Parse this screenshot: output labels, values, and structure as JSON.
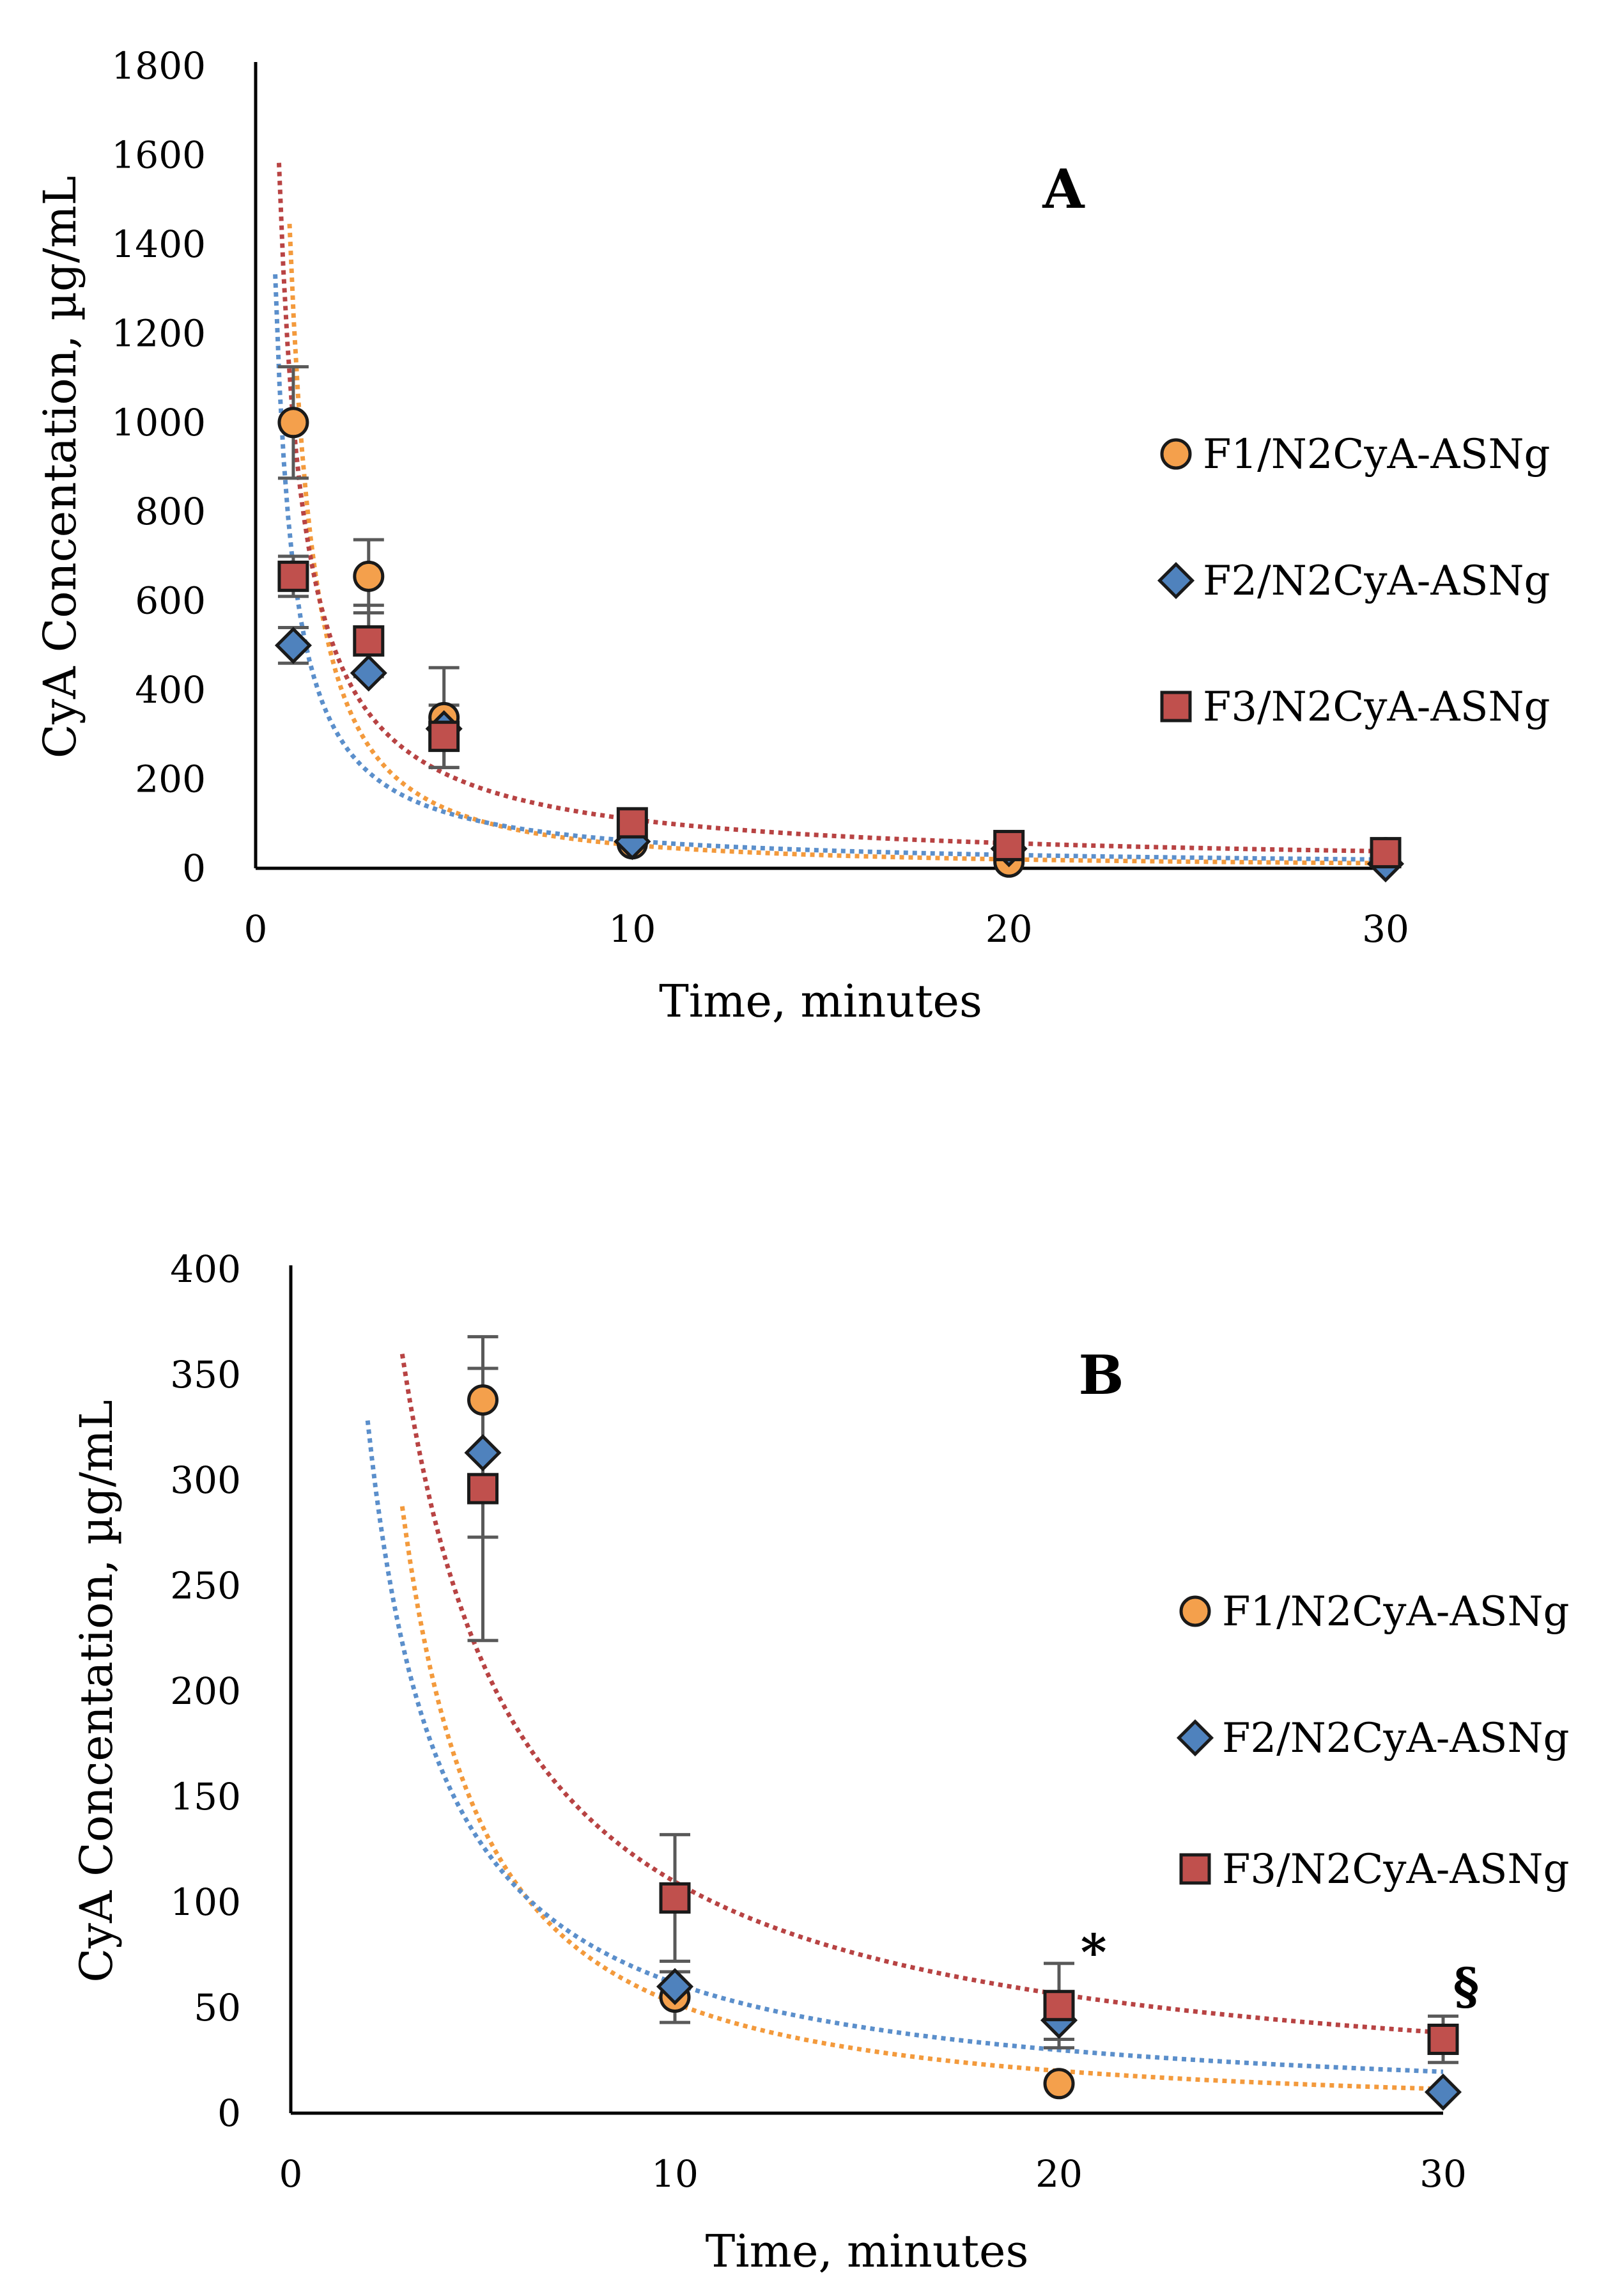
{
  "colors": {
    "F1": "#f4a04c",
    "F2": "#4f82bd",
    "F3": "#c0504d",
    "fit_F1": "#f39a3c",
    "fit_F2": "#5b8fcb",
    "fit_F3": "#b84343",
    "marker_edge": "#1a1a1a",
    "errorbar": "#595959",
    "axis": "#000000"
  },
  "legend_items": [
    "F1/N2CyA-ASNg",
    "F2/N2CyA-ASNg",
    "F3/N2CyA-ASNg"
  ],
  "chart_data": [
    {
      "panel": "A",
      "type": "scatter",
      "xlabel": "Time, minutes",
      "ylabel": "CyA Concentation, µg/mL",
      "xlim": [
        0,
        30
      ],
      "ylim": [
        0,
        1800
      ],
      "x_ticks": [
        0,
        10,
        20,
        30
      ],
      "y_ticks": [
        0,
        200,
        400,
        600,
        800,
        1000,
        1200,
        1400,
        1600,
        1800
      ],
      "grid": false,
      "legend_position": "right",
      "series": [
        {
          "name": "F1/N2CyA-ASNg",
          "marker": "circle",
          "color_key": "F1",
          "points": [
            {
              "x": 1,
              "y": 1000,
              "err": 125
            },
            {
              "x": 3,
              "y": 655,
              "err": 82
            },
            {
              "x": 5,
              "y": 338,
              "err": 112
            },
            {
              "x": 10,
              "y": 55,
              "err": 0
            },
            {
              "x": 20,
              "y": 14,
              "err": 0
            },
            {
              "x": 30,
              "y": 35,
              "err": 0
            }
          ],
          "fit": {
            "a": 1250,
            "b": 1.38,
            "xmin": 0.9
          }
        },
        {
          "name": "F2/N2CyA-ASNg",
          "marker": "diamond",
          "color_key": "F2",
          "points": [
            {
              "x": 1,
              "y": 500,
              "err": 40
            },
            {
              "x": 3,
              "y": 438,
              "err": 0
            },
            {
              "x": 5,
              "y": 313,
              "err": 0
            },
            {
              "x": 10,
              "y": 60,
              "err": 0
            },
            {
              "x": 20,
              "y": 44,
              "err": 0
            },
            {
              "x": 30,
              "y": 10,
              "err": 0
            }
          ],
          "fit": {
            "a": 675,
            "b": 1.04,
            "xmin": 0.52
          }
        },
        {
          "name": "F3/N2CyA-ASNg",
          "marker": "square",
          "color_key": "F3",
          "points": [
            {
              "x": 1,
              "y": 655,
              "err": 45
            },
            {
              "x": 3,
              "y": 510,
              "err": 80
            },
            {
              "x": 5,
              "y": 296,
              "err": 70
            },
            {
              "x": 10,
              "y": 102,
              "err": 0
            },
            {
              "x": 20,
              "y": 51,
              "err": 0
            },
            {
              "x": 30,
              "y": 35,
              "err": 0
            }
          ],
          "fit": {
            "a": 1000,
            "b": 0.96,
            "xmin": 0.62
          }
        }
      ]
    },
    {
      "panel": "B",
      "type": "scatter",
      "xlabel": "Time, minutes",
      "ylabel": "CyA Concentation, µg/mL",
      "xlim": [
        0,
        30
      ],
      "ylim": [
        0,
        400
      ],
      "x_ticks": [
        0,
        10,
        20,
        30
      ],
      "y_ticks": [
        0,
        50,
        100,
        150,
        200,
        250,
        300,
        350,
        400
      ],
      "grid": false,
      "legend_position": "right",
      "annotations": [
        {
          "text": "*",
          "x": 20.9,
          "y": 68
        },
        {
          "text": "§",
          "x": 30.6,
          "y": 52
        }
      ],
      "series": [
        {
          "name": "F1/N2CyA-ASNg",
          "marker": "circle",
          "color_key": "F1",
          "points": [
            {
              "x": 5,
              "y": 338,
              "err": 0
            },
            {
              "x": 10,
              "y": 55,
              "err": 12
            },
            {
              "x": 20,
              "y": 14,
              "err": 0
            },
            {
              "x": 30,
              "y": 35,
              "err": 0
            }
          ],
          "fit": {
            "a": 1250,
            "b": 1.38,
            "xmin": 2.9
          }
        },
        {
          "name": "F2/N2CyA-ASNg",
          "marker": "diamond",
          "color_key": "F2",
          "points": [
            {
              "x": 5,
              "y": 313,
              "err": 40
            },
            {
              "x": 10,
              "y": 60,
              "err": 0
            },
            {
              "x": 20,
              "y": 44,
              "err": 9
            },
            {
              "x": 30,
              "y": 10,
              "err": 0
            }
          ],
          "fit": {
            "a": 675,
            "b": 1.04,
            "xmin": 2.0
          }
        },
        {
          "name": "F3/N2CyA-ASNg",
          "marker": "square",
          "color_key": "F3",
          "points": [
            {
              "x": 5,
              "y": 296,
              "err": 72
            },
            {
              "x": 10,
              "y": 102,
              "err": 30
            },
            {
              "x": 20,
              "y": 51,
              "err": 20
            },
            {
              "x": 30,
              "y": 35,
              "err": 11
            }
          ],
          "fit": {
            "a": 1000,
            "b": 0.96,
            "xmin": 2.9
          }
        }
      ]
    }
  ]
}
